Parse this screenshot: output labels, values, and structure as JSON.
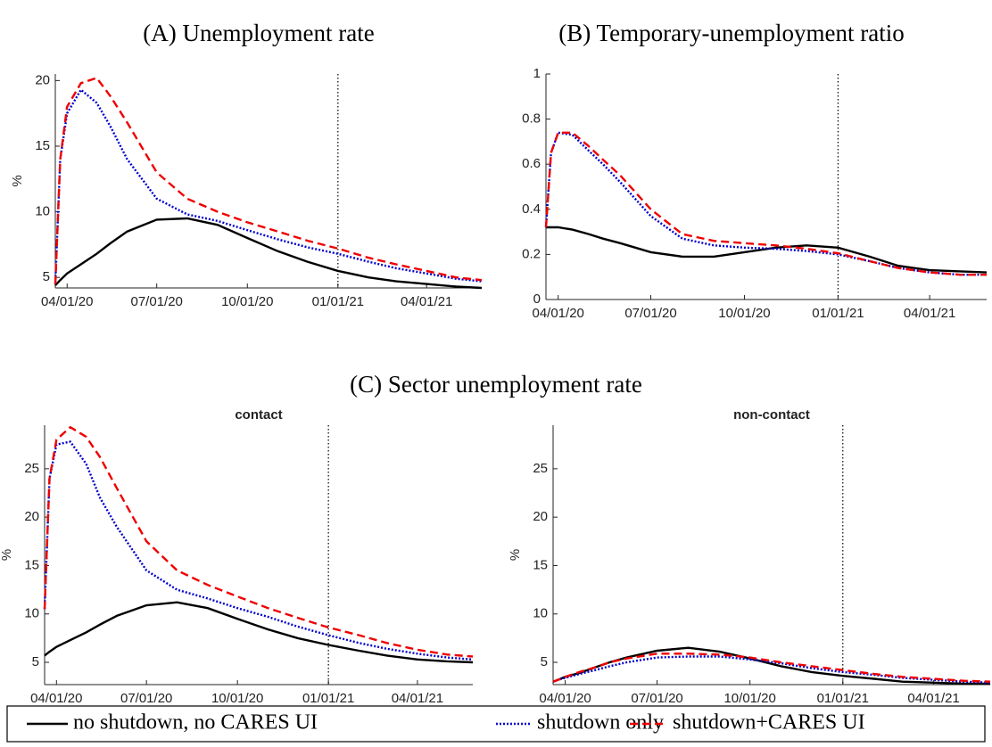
{
  "chart_data": [
    {
      "type": "line",
      "title": "(A) Unemployment rate",
      "ylabel": "%",
      "x": [
        "2020-03-20",
        "2020-03-25",
        "2020-04-01",
        "2020-04-15",
        "2020-05-01",
        "2020-05-15",
        "2020-06-01",
        "2020-07-01",
        "2020-08-01",
        "2020-09-01",
        "2020-10-01",
        "2020-11-01",
        "2020-12-01",
        "2021-01-01",
        "2021-02-01",
        "2021-03-01",
        "2021-04-01",
        "2021-05-01",
        "2021-05-27"
      ],
      "xlim": [
        "2020-03-20",
        "2021-05-27"
      ],
      "xticks": [
        {
          "value": "2020-04-01",
          "label": "04/01/20"
        },
        {
          "value": "2020-07-01",
          "label": "07/01/20"
        },
        {
          "value": "2020-10-01",
          "label": "10/01/20"
        },
        {
          "value": "2021-01-01",
          "label": "01/01/21"
        },
        {
          "value": "2021-04-01",
          "label": "04/01/21"
        }
      ],
      "ylim": [
        4.2,
        20.5
      ],
      "yticks": [
        5,
        10,
        15,
        20
      ],
      "vline": "2021-01-01",
      "series": [
        {
          "name": "no shutdown, no CARES UI",
          "color": "#000000",
          "linestyle": "solid",
          "values": [
            4.4,
            4.8,
            5.3,
            6.0,
            6.8,
            7.6,
            8.5,
            9.4,
            9.5,
            9.0,
            8.0,
            7.0,
            6.2,
            5.5,
            5.0,
            4.7,
            4.5,
            4.3,
            4.2
          ]
        },
        {
          "name": "shutdown only",
          "color": "#0000cc",
          "linestyle": "dotted",
          "values": [
            4.5,
            14,
            17.5,
            19.3,
            18.3,
            16.5,
            14,
            11,
            9.8,
            9.3,
            8.6,
            7.9,
            7.3,
            6.8,
            6.2,
            5.7,
            5.3,
            4.9,
            4.7
          ]
        },
        {
          "name": "shutdown+CARES UI",
          "color": "#ee0000",
          "linestyle": "dashed",
          "values": [
            4.5,
            14,
            18,
            19.8,
            20.2,
            18.8,
            16.8,
            13,
            11,
            10,
            9.2,
            8.5,
            7.8,
            7.2,
            6.5,
            6.0,
            5.5,
            5.0,
            4.8
          ]
        }
      ]
    },
    {
      "type": "line",
      "title": "(B) Temporary-unemployment ratio",
      "x": [
        "2020-03-20",
        "2020-03-25",
        "2020-04-01",
        "2020-04-15",
        "2020-05-01",
        "2020-05-15",
        "2020-06-01",
        "2020-07-01",
        "2020-08-01",
        "2020-09-01",
        "2020-10-01",
        "2020-11-01",
        "2020-12-01",
        "2021-01-01",
        "2021-02-01",
        "2021-03-01",
        "2021-04-01",
        "2021-05-01",
        "2021-05-27"
      ],
      "xlim": [
        "2020-03-20",
        "2021-05-27"
      ],
      "xticks": [
        {
          "value": "2020-04-01",
          "label": "04/01/20"
        },
        {
          "value": "2020-07-01",
          "label": "07/01/20"
        },
        {
          "value": "2020-10-01",
          "label": "10/01/20"
        },
        {
          "value": "2021-01-01",
          "label": "01/01/21"
        },
        {
          "value": "2021-04-01",
          "label": "04/01/21"
        }
      ],
      "ylim": [
        0,
        1
      ],
      "yticks": [
        0,
        0.2,
        0.4,
        0.6,
        0.8,
        1
      ],
      "vline": "2021-01-01",
      "series": [
        {
          "name": "no shutdown, no CARES UI",
          "color": "#000000",
          "linestyle": "solid",
          "values": [
            0.32,
            0.32,
            0.32,
            0.31,
            0.29,
            0.27,
            0.25,
            0.21,
            0.19,
            0.19,
            0.21,
            0.23,
            0.24,
            0.23,
            0.19,
            0.15,
            0.13,
            0.125,
            0.12
          ]
        },
        {
          "name": "shutdown only",
          "color": "#0000cc",
          "linestyle": "dotted",
          "values": [
            0.32,
            0.65,
            0.74,
            0.73,
            0.66,
            0.6,
            0.52,
            0.37,
            0.27,
            0.24,
            0.23,
            0.225,
            0.215,
            0.2,
            0.17,
            0.14,
            0.12,
            0.11,
            0.11
          ]
        },
        {
          "name": "shutdown+CARES UI",
          "color": "#ee0000",
          "linestyle": "dashed",
          "values": [
            0.32,
            0.65,
            0.74,
            0.74,
            0.68,
            0.62,
            0.55,
            0.4,
            0.29,
            0.26,
            0.25,
            0.24,
            0.225,
            0.205,
            0.17,
            0.14,
            0.12,
            0.11,
            0.11
          ]
        }
      ]
    },
    {
      "type": "line",
      "title": "contact",
      "ylabel": "%",
      "x": [
        "2020-03-20",
        "2020-03-25",
        "2020-04-01",
        "2020-04-15",
        "2020-05-01",
        "2020-05-15",
        "2020-06-01",
        "2020-07-01",
        "2020-08-01",
        "2020-09-01",
        "2020-10-01",
        "2020-11-01",
        "2020-12-01",
        "2021-01-01",
        "2021-02-01",
        "2021-03-01",
        "2021-04-01",
        "2021-05-01",
        "2021-05-27"
      ],
      "xlim": [
        "2020-03-20",
        "2021-05-27"
      ],
      "xticks": [
        {
          "value": "2020-04-01",
          "label": "04/01/20"
        },
        {
          "value": "2020-07-01",
          "label": "07/01/20"
        },
        {
          "value": "2020-10-01",
          "label": "10/01/20"
        },
        {
          "value": "2021-01-01",
          "label": "01/01/21"
        },
        {
          "value": "2021-04-01",
          "label": "04/01/21"
        }
      ],
      "ylim": [
        2.7,
        29.5
      ],
      "yticks": [
        5,
        10,
        15,
        20,
        25
      ],
      "vline": "2021-01-01",
      "series": [
        {
          "name": "no shutdown, no CARES UI",
          "color": "#000000",
          "linestyle": "solid",
          "values": [
            5.7,
            6.1,
            6.6,
            7.3,
            8.1,
            8.9,
            9.8,
            10.9,
            11.2,
            10.6,
            9.5,
            8.4,
            7.5,
            6.8,
            6.2,
            5.7,
            5.3,
            5.1,
            5.0
          ]
        },
        {
          "name": "shutdown only",
          "color": "#0000cc",
          "linestyle": "dotted",
          "values": [
            10.5,
            24,
            27.5,
            27.8,
            25.5,
            22,
            19,
            14.5,
            12.5,
            11.6,
            10.6,
            9.7,
            8.7,
            7.8,
            7.0,
            6.4,
            5.9,
            5.5,
            5.3
          ]
        },
        {
          "name": "shutdown+CARES UI",
          "color": "#ee0000",
          "linestyle": "dashed",
          "values": [
            10.5,
            24,
            28,
            29.3,
            28.3,
            26.2,
            23,
            17.5,
            14.5,
            13,
            11.8,
            10.6,
            9.6,
            8.6,
            7.8,
            7.0,
            6.3,
            5.8,
            5.6
          ]
        }
      ]
    },
    {
      "type": "line",
      "title": "non-contact",
      "ylabel": "%",
      "x": [
        "2020-03-20",
        "2020-03-25",
        "2020-04-01",
        "2020-04-15",
        "2020-05-01",
        "2020-05-15",
        "2020-06-01",
        "2020-07-01",
        "2020-08-01",
        "2020-09-01",
        "2020-10-01",
        "2020-11-01",
        "2020-12-01",
        "2021-01-01",
        "2021-02-01",
        "2021-03-01",
        "2021-04-01",
        "2021-05-01",
        "2021-05-27"
      ],
      "xlim": [
        "2020-03-20",
        "2021-05-27"
      ],
      "xticks": [
        {
          "value": "2020-04-01",
          "label": "04/01/20"
        },
        {
          "value": "2020-07-01",
          "label": "07/01/20"
        },
        {
          "value": "2020-10-01",
          "label": "10/01/20"
        },
        {
          "value": "2021-01-01",
          "label": "01/01/21"
        },
        {
          "value": "2021-04-01",
          "label": "04/01/21"
        }
      ],
      "ylim": [
        2.7,
        29.5
      ],
      "yticks": [
        5,
        10,
        15,
        20,
        25
      ],
      "vline": "2021-01-01",
      "series": [
        {
          "name": "no shutdown, no CARES UI",
          "color": "#000000",
          "linestyle": "solid",
          "values": [
            3.0,
            3.2,
            3.5,
            3.9,
            4.5,
            5.0,
            5.5,
            6.2,
            6.5,
            6.1,
            5.4,
            4.6,
            4.0,
            3.6,
            3.3,
            3.0,
            2.9,
            2.8,
            2.8
          ]
        },
        {
          "name": "shutdown only",
          "color": "#0000cc",
          "linestyle": "dotted",
          "values": [
            3.0,
            3.2,
            3.4,
            3.8,
            4.2,
            4.6,
            5.0,
            5.5,
            5.6,
            5.6,
            5.3,
            4.9,
            4.4,
            4.0,
            3.7,
            3.4,
            3.2,
            3.0,
            2.9
          ]
        },
        {
          "name": "shutdown+CARES UI",
          "color": "#ee0000",
          "linestyle": "dashed",
          "values": [
            3.0,
            3.2,
            3.5,
            4.0,
            4.5,
            5.0,
            5.4,
            5.9,
            5.9,
            5.8,
            5.5,
            5.0,
            4.6,
            4.2,
            3.8,
            3.5,
            3.3,
            3.1,
            3.0
          ]
        }
      ]
    }
  ],
  "heading": "(C) Sector unemployment rate"
}
